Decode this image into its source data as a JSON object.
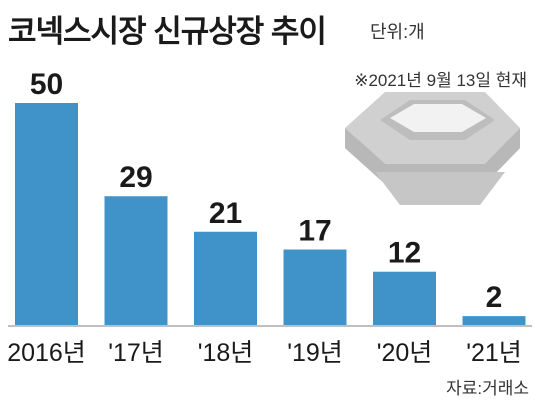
{
  "header": {
    "title": "코넥스시장 신규상장 추이",
    "unit": "단위:개"
  },
  "note": "※2021년 9월 13일 현재",
  "source": "자료:거래소",
  "colors": {
    "bar": "#3f93c9",
    "baseline": "#bfbfbf",
    "text": "#1a1a1a",
    "podium_top": "#d0d0d0",
    "podium_side": "#a8a8a8"
  },
  "chart_data": {
    "type": "bar",
    "title": "코넥스시장 신규상장 추이",
    "categories": [
      "2016년",
      "'17년",
      "'18년",
      "'19년",
      "'20년",
      "'21년"
    ],
    "values": [
      50,
      29,
      21,
      17,
      12,
      2
    ],
    "data_labels": [
      "50",
      "29",
      "21",
      "17",
      "12",
      "2"
    ],
    "ylim": [
      0,
      50
    ],
    "grid": false,
    "legend": "none"
  }
}
